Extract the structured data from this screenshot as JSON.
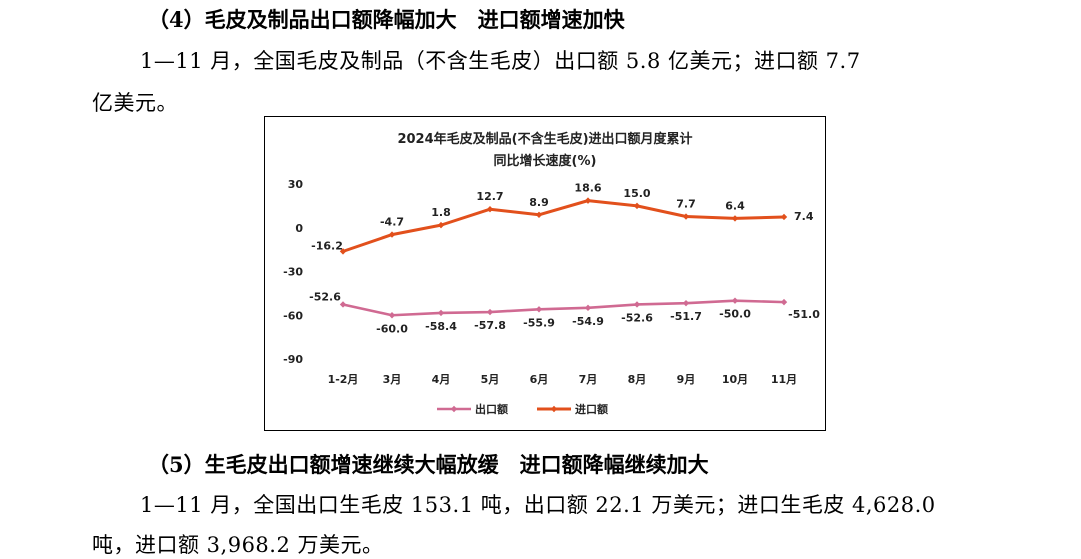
{
  "section4": {
    "heading": "（4）毛皮及制品出口额降幅加大　进口额增速加快",
    "para_line1": "1—11 月，全国毛皮及制品（不含生毛皮）出口额 5.8 亿美元；进口额 7.7",
    "para_line2": "亿美元。"
  },
  "section5": {
    "heading": "（5）生毛皮出口额增速继续大幅放缓　进口额降幅继续加大",
    "para_line1": "1—11 月，全国出口生毛皮 153.1 吨，出口额 22.1 万美元；进口生毛皮 4,628.0",
    "para_line2": "吨，进口额 3,968.2 万美元。"
  },
  "chart_data": {
    "type": "line",
    "title_line1": "2024年毛皮及制品(不含生毛皮)进出口额月度累计",
    "title_line2": "同比增长速度(%)",
    "categories": [
      "1-2月",
      "3月",
      "4月",
      "5月",
      "6月",
      "7月",
      "8月",
      "9月",
      "10月",
      "11月"
    ],
    "series": [
      {
        "name": "出口额",
        "color": "#d06a92",
        "values": [
          -52.6,
          -60.0,
          -58.4,
          -57.8,
          -55.9,
          -54.9,
          -52.6,
          -51.7,
          -50.0,
          -51.0
        ],
        "labels": [
          "-52.6",
          "-60.0",
          "-58.4",
          "-57.8",
          "-55.9",
          "-54.9",
          "-52.6",
          "-51.7",
          "-50.0",
          "-51.0"
        ]
      },
      {
        "name": "进口额",
        "color": "#e2501c",
        "values": [
          -16.2,
          -4.7,
          1.8,
          12.7,
          8.9,
          18.6,
          15.0,
          7.7,
          6.4,
          7.4
        ],
        "labels": [
          "-16.2",
          "-4.7",
          "1.8",
          "12.7",
          "8.9",
          "18.6",
          "15.0",
          "7.7",
          "6.4",
          "7.4"
        ]
      }
    ],
    "yticks": [
      30,
      0,
      -30,
      -60,
      -90
    ],
    "ytick_labels": [
      "30",
      "0",
      "-30",
      "-60",
      "-90"
    ],
    "ylim": [
      -90,
      30
    ],
    "xlabel": "",
    "ylabel": "",
    "grid": false,
    "legend_position": "bottom"
  }
}
